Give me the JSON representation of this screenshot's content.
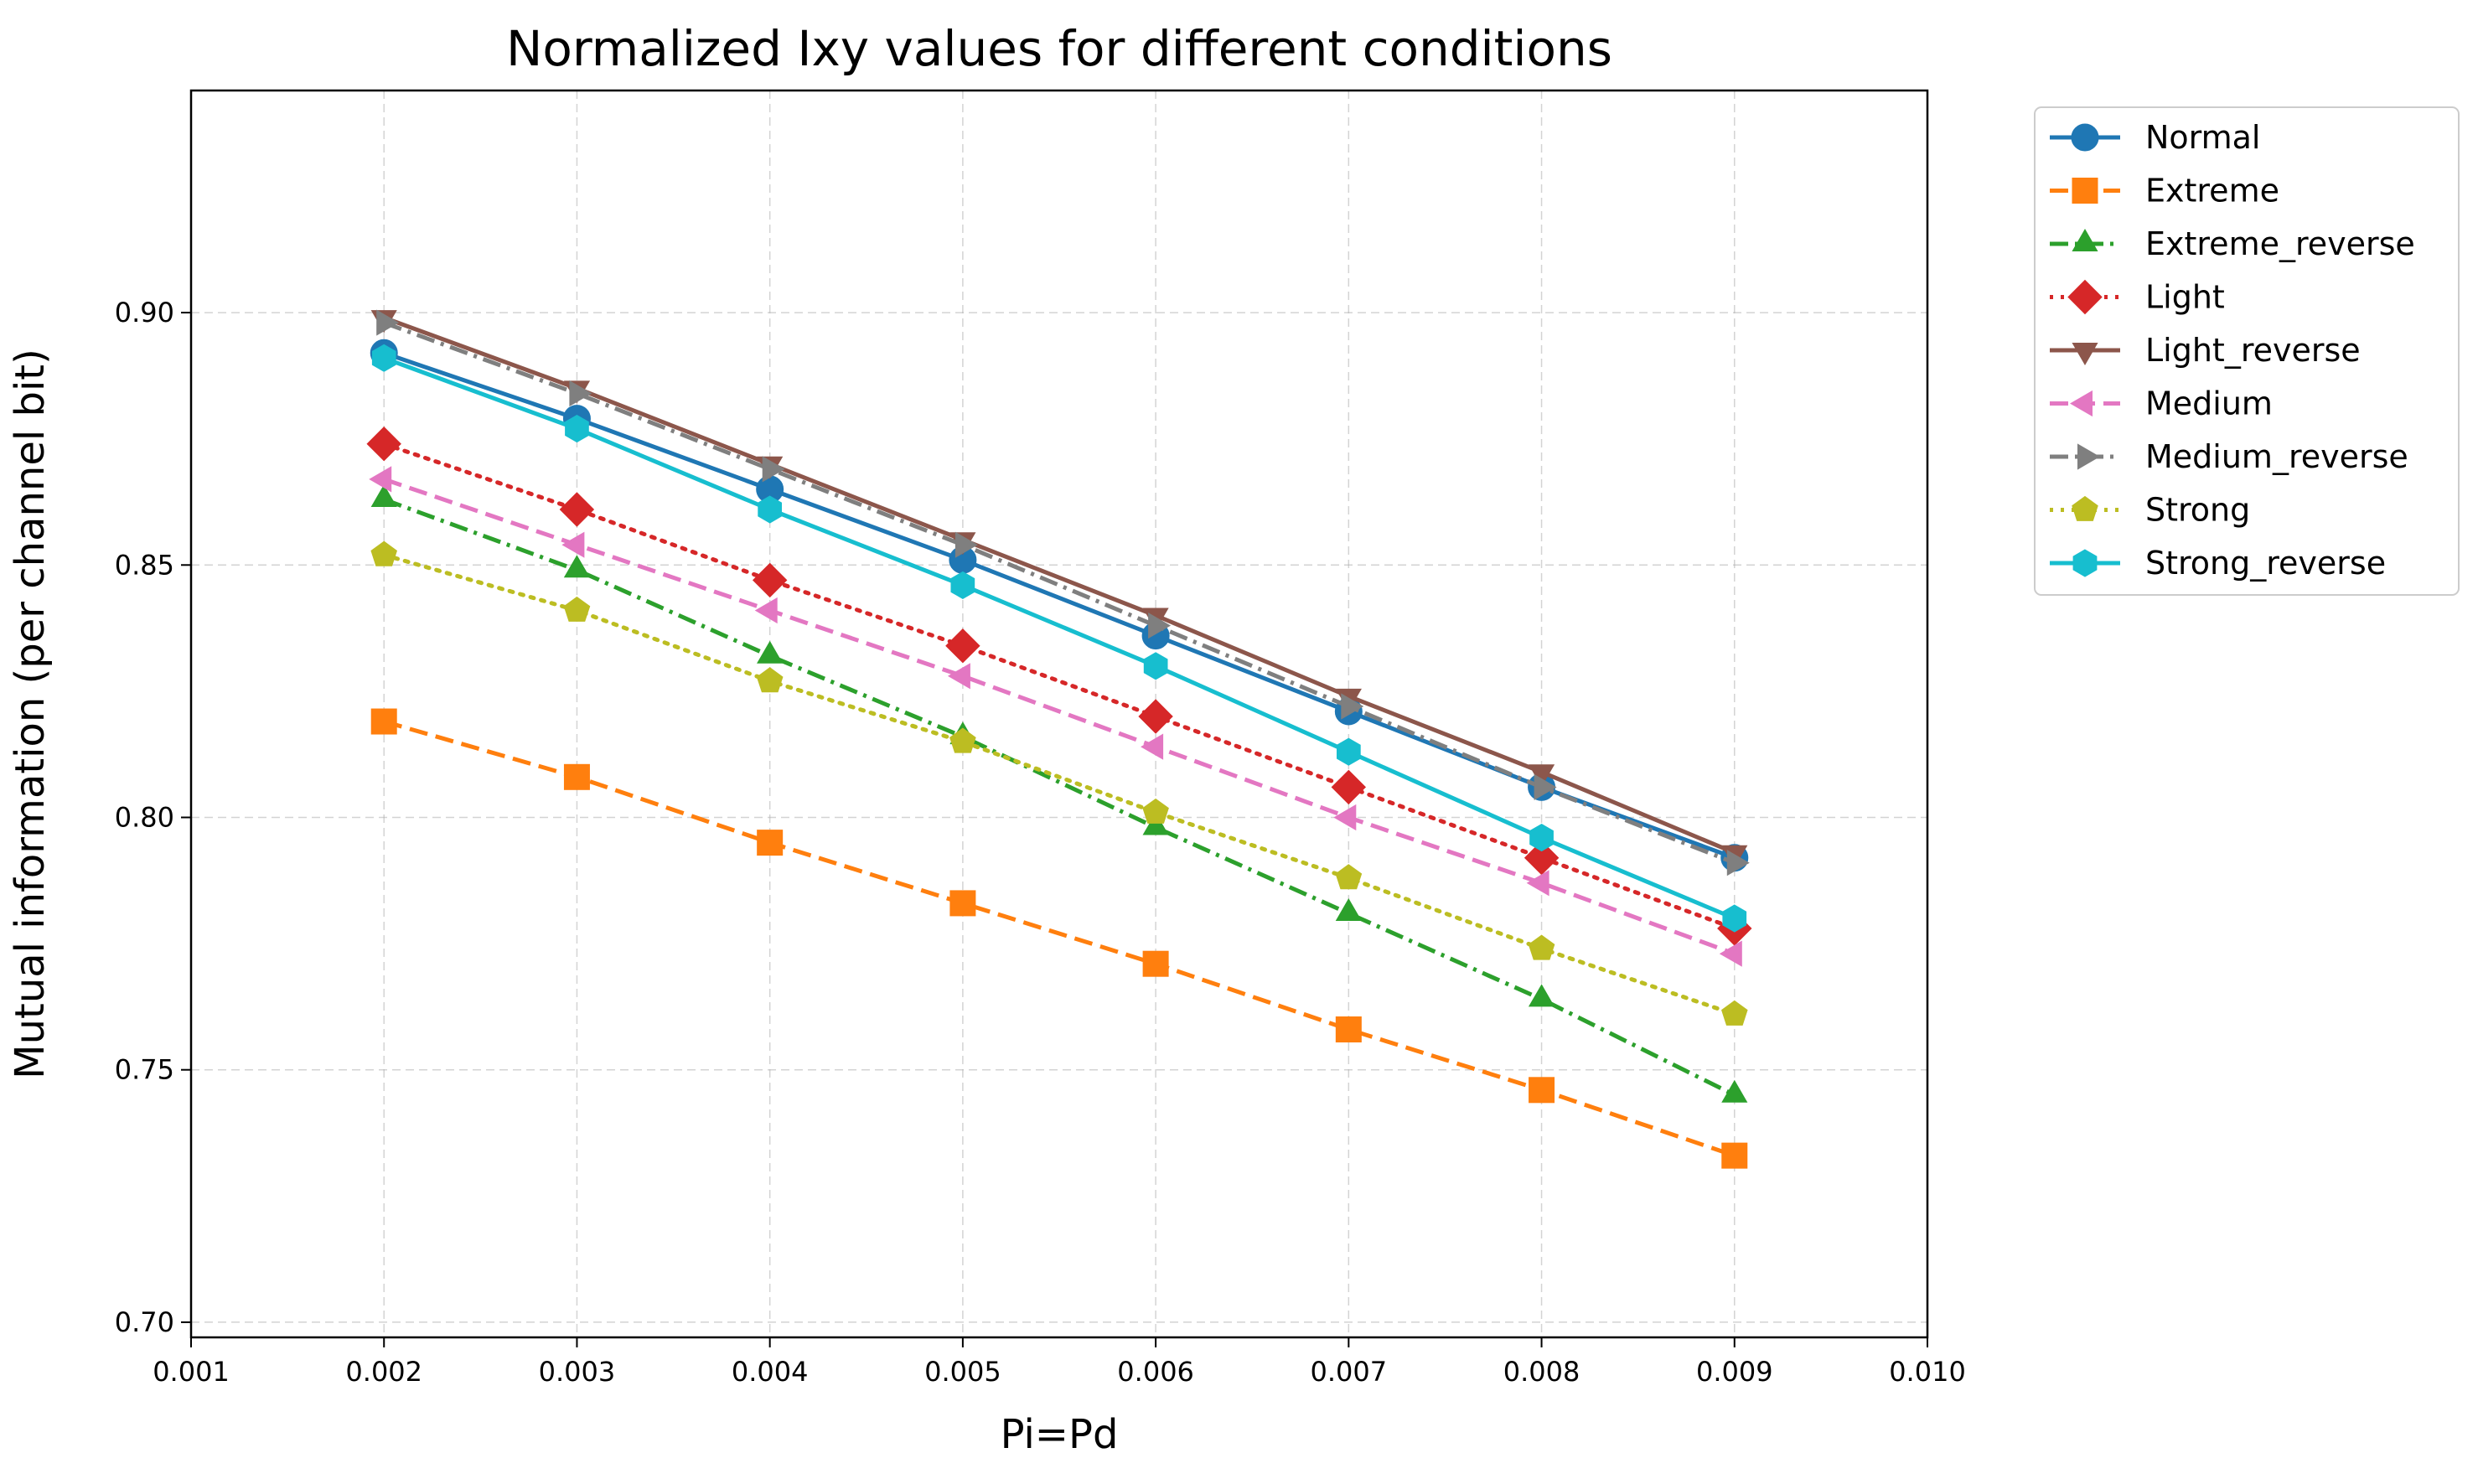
{
  "chart_data": {
    "type": "line",
    "title": "Normalized Ixy values for different conditions",
    "xlabel": "Pi=Pd",
    "ylabel": "Mutual information (per channel bit)",
    "xlim": [
      0.001,
      0.01
    ],
    "ylim": [
      0.697,
      0.944
    ],
    "xticks": [
      "0.001",
      "0.002",
      "0.003",
      "0.004",
      "0.005",
      "0.006",
      "0.007",
      "0.008",
      "0.009",
      "0.010"
    ],
    "yticks": [
      "0.70",
      "0.75",
      "0.80",
      "0.85",
      "0.90"
    ],
    "grid": true,
    "legend_position": "outside-top-right",
    "x": [
      0.002,
      0.003,
      0.004,
      0.005,
      0.006,
      0.007,
      0.008,
      0.009
    ],
    "series": [
      {
        "name": "Normal",
        "color": "#1f77b4",
        "marker": "circle",
        "linestyle": "solid",
        "values": [
          0.892,
          0.879,
          0.865,
          0.851,
          0.836,
          0.821,
          0.806,
          0.792
        ]
      },
      {
        "name": "Extreme",
        "color": "#ff7f0e",
        "marker": "square",
        "linestyle": "dashed",
        "values": [
          0.819,
          0.808,
          0.795,
          0.783,
          0.771,
          0.758,
          0.746,
          0.733
        ]
      },
      {
        "name": "Extreme_reverse",
        "color": "#2ca02c",
        "marker": "triangle-up",
        "linestyle": "dashdot",
        "values": [
          0.863,
          0.849,
          0.832,
          0.816,
          0.798,
          0.781,
          0.764,
          0.745
        ]
      },
      {
        "name": "Light",
        "color": "#d62728",
        "marker": "diamond",
        "linestyle": "dotted",
        "values": [
          0.874,
          0.861,
          0.847,
          0.834,
          0.82,
          0.806,
          0.792,
          0.778
        ]
      },
      {
        "name": "Light_reverse",
        "color": "#8c564b",
        "marker": "triangle-down",
        "linestyle": "solid",
        "values": [
          0.899,
          0.885,
          0.87,
          0.855,
          0.84,
          0.824,
          0.809,
          0.793
        ]
      },
      {
        "name": "Medium",
        "color": "#e377c2",
        "marker": "triangle-left",
        "linestyle": "dashed",
        "values": [
          0.867,
          0.854,
          0.841,
          0.828,
          0.814,
          0.8,
          0.787,
          0.773
        ]
      },
      {
        "name": "Medium_reverse",
        "color": "#7f7f7f",
        "marker": "triangle-right",
        "linestyle": "dashdot",
        "values": [
          0.898,
          0.884,
          0.869,
          0.854,
          0.838,
          0.822,
          0.806,
          0.791
        ]
      },
      {
        "name": "Strong",
        "color": "#bcbd22",
        "marker": "pentagon",
        "linestyle": "dotted",
        "values": [
          0.852,
          0.841,
          0.827,
          0.815,
          0.801,
          0.788,
          0.774,
          0.761
        ]
      },
      {
        "name": "Strong_reverse",
        "color": "#17becf",
        "marker": "hexagon",
        "linestyle": "solid",
        "values": [
          0.891,
          0.877,
          0.861,
          0.846,
          0.83,
          0.813,
          0.796,
          0.78
        ]
      }
    ]
  }
}
